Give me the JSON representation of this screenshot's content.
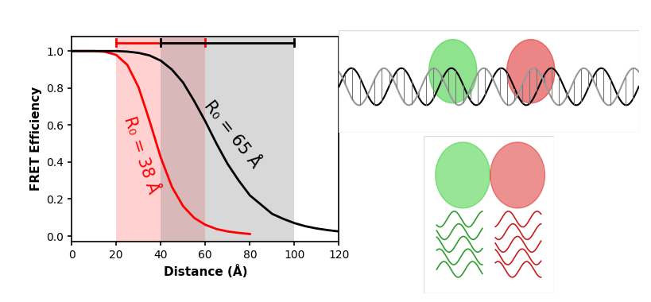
{
  "chart_data": {
    "type": "line",
    "xlabel": "Distance (Å)",
    "ylabel": "FRET Efficiency",
    "xlim": [
      0,
      120
    ],
    "ylim": [
      -0.03,
      1.08
    ],
    "xticks": [
      0,
      20,
      40,
      60,
      80,
      100,
      120
    ],
    "yticks": [
      {
        "value": 0,
        "label": "0.0"
      },
      {
        "value": 0.2,
        "label": "0.2"
      },
      {
        "value": 0.4,
        "label": "0.4"
      },
      {
        "value": 0.6,
        "label": "0.6"
      },
      {
        "value": 0.8,
        "label": "0.8"
      },
      {
        "value": 1.0,
        "label": "1.0"
      }
    ],
    "series": [
      {
        "name": "R₀ = 38 Å",
        "color": "#ff0000",
        "range": [
          20,
          60
        ],
        "x": [
          0,
          5,
          10,
          15,
          20,
          25,
          30,
          35,
          40,
          45,
          50,
          55,
          60,
          65,
          70,
          75,
          80
        ],
        "values": [
          1.0,
          1.0,
          1.0,
          0.996,
          0.979,
          0.925,
          0.805,
          0.621,
          0.424,
          0.266,
          0.162,
          0.098,
          0.061,
          0.038,
          0.025,
          0.017,
          0.011
        ]
      },
      {
        "name": "R₀ = 65 Å",
        "color": "#000000",
        "range": [
          40,
          100
        ],
        "x": [
          0,
          5,
          10,
          15,
          20,
          25,
          30,
          35,
          40,
          45,
          50,
          55,
          60,
          65,
          70,
          75,
          80,
          85,
          90,
          95,
          100,
          105,
          110,
          115,
          120
        ],
        "values": [
          1.0,
          1.0,
          1.0,
          1.0,
          1.0,
          0.997,
          0.99,
          0.976,
          0.948,
          0.9,
          0.83,
          0.73,
          0.62,
          0.5,
          0.39,
          0.3,
          0.22,
          0.17,
          0.12,
          0.093,
          0.07,
          0.053,
          0.041,
          0.032,
          0.025
        ]
      }
    ]
  }
}
